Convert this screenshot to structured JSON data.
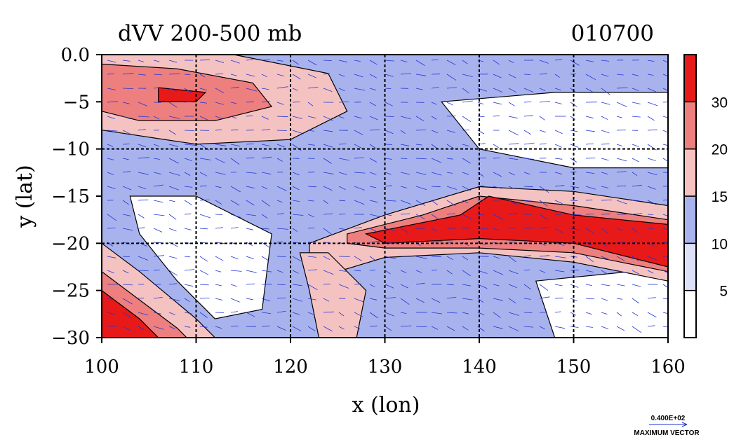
{
  "chart_data": {
    "type": "heatmap",
    "title": "dVV 200-500 mb",
    "date_label": "010700",
    "xlabel": "x (lon)",
    "ylabel": "y (lat)",
    "xlim": [
      100,
      160
    ],
    "ylim": [
      -30,
      0
    ],
    "x_ticks": [
      "100",
      "110",
      "120",
      "130",
      "140",
      "150",
      "160"
    ],
    "x_tick_values": [
      100,
      110,
      120,
      130,
      140,
      150,
      160
    ],
    "y_ticks": [
      "0.0",
      "−5",
      "−10",
      "−15",
      "−20",
      "−25",
      "−30"
    ],
    "y_tick_values": [
      0,
      -5,
      -10,
      -15,
      -20,
      -25,
      -30
    ],
    "grid": true,
    "colorbar": {
      "levels": [
        0,
        5,
        10,
        15,
        20,
        30,
        40
      ],
      "labels": [
        "5",
        "10",
        "15",
        "20",
        "30"
      ],
      "label_values": [
        5,
        10,
        15,
        20,
        30
      ],
      "colors": [
        "#ffffff",
        "#dde1f7",
        "#a8b3ee",
        "#f5c2c2",
        "#ee7f7f",
        "#e81919"
      ]
    },
    "regions": [
      {
        "name": "northwest-jet",
        "level_index": 3,
        "polygon": [
          [
            100,
            0
          ],
          [
            114,
            0
          ],
          [
            124,
            -2
          ],
          [
            126,
            -6
          ],
          [
            120,
            -9
          ],
          [
            110,
            -9.5
          ],
          [
            100,
            -8
          ]
        ]
      },
      {
        "name": "northwest-jet-core",
        "level_index": 4,
        "polygon": [
          [
            100,
            -1
          ],
          [
            108,
            -1.5
          ],
          [
            116,
            -3
          ],
          [
            118,
            -5.5
          ],
          [
            112,
            -7
          ],
          [
            104,
            -7
          ],
          [
            100,
            -6
          ]
        ]
      },
      {
        "name": "northwest-jet-max",
        "level_index": 5,
        "polygon": [
          [
            106,
            -3.5
          ],
          [
            111,
            -4
          ],
          [
            110,
            -5
          ],
          [
            106,
            -5
          ]
        ]
      },
      {
        "name": "north-east-weak",
        "level_index": 0,
        "polygon": [
          [
            136,
            -5
          ],
          [
            148,
            -4
          ],
          [
            160,
            -4
          ],
          [
            160,
            -12
          ],
          [
            150,
            -12
          ],
          [
            140,
            -10
          ]
        ]
      },
      {
        "name": "southwest-core-weak",
        "level_index": 0,
        "polygon": [
          [
            103,
            -15
          ],
          [
            110,
            -15
          ],
          [
            118,
            -19
          ],
          [
            117,
            -27
          ],
          [
            112,
            -28
          ],
          [
            108,
            -24
          ],
          [
            104,
            -19
          ]
        ]
      },
      {
        "name": "southeast-weak",
        "level_index": 0,
        "polygon": [
          [
            146,
            -24
          ],
          [
            156,
            -23
          ],
          [
            160,
            -24
          ],
          [
            160,
            -30
          ],
          [
            148,
            -30
          ]
        ]
      },
      {
        "name": "central-jet-outer",
        "level_index": 3,
        "polygon": [
          [
            122,
            -20
          ],
          [
            130,
            -17
          ],
          [
            140,
            -14
          ],
          [
            150,
            -14.5
          ],
          [
            160,
            -16
          ],
          [
            160,
            -24
          ],
          [
            150,
            -22
          ],
          [
            140,
            -21
          ],
          [
            130,
            -21.5
          ],
          [
            125,
            -23
          ],
          [
            122,
            -22
          ]
        ]
      },
      {
        "name": "central-jet-mid",
        "level_index": 4,
        "polygon": [
          [
            126,
            -19
          ],
          [
            134,
            -17
          ],
          [
            140,
            -15
          ],
          [
            150,
            -16
          ],
          [
            160,
            -17.5
          ],
          [
            160,
            -23
          ],
          [
            150,
            -21
          ],
          [
            140,
            -20.5
          ],
          [
            130,
            -20.5
          ],
          [
            126,
            -20
          ]
        ]
      },
      {
        "name": "central-jet-core",
        "level_index": 5,
        "polygon": [
          [
            128,
            -19
          ],
          [
            138,
            -17
          ],
          [
            141,
            -15
          ],
          [
            150,
            -17
          ],
          [
            160,
            -18
          ],
          [
            160,
            -22.5
          ],
          [
            150,
            -20
          ],
          [
            140,
            -19.5
          ],
          [
            130,
            -20
          ]
        ]
      },
      {
        "name": "southwest-jet-outer",
        "level_index": 3,
        "polygon": [
          [
            100,
            -20
          ],
          [
            104,
            -23
          ],
          [
            110,
            -28
          ],
          [
            112,
            -30
          ],
          [
            100,
            -30
          ]
        ]
      },
      {
        "name": "southwest-jet-mid",
        "level_index": 4,
        "polygon": [
          [
            100,
            -23
          ],
          [
            104,
            -26
          ],
          [
            108,
            -29
          ],
          [
            109,
            -30
          ],
          [
            100,
            -30
          ]
        ]
      },
      {
        "name": "southwest-jet-core",
        "level_index": 5,
        "polygon": [
          [
            100,
            -25
          ],
          [
            104,
            -28
          ],
          [
            106,
            -30
          ],
          [
            100,
            -30
          ]
        ]
      },
      {
        "name": "south-central-plume",
        "level_index": 3,
        "polygon": [
          [
            121,
            -21
          ],
          [
            124,
            -21
          ],
          [
            128,
            -25
          ],
          [
            127,
            -30
          ],
          [
            123,
            -30
          ],
          [
            122,
            -25
          ]
        ]
      }
    ],
    "vector_label": "0.400E+02",
    "vector_caption": "MAXIMUM VECTOR"
  }
}
